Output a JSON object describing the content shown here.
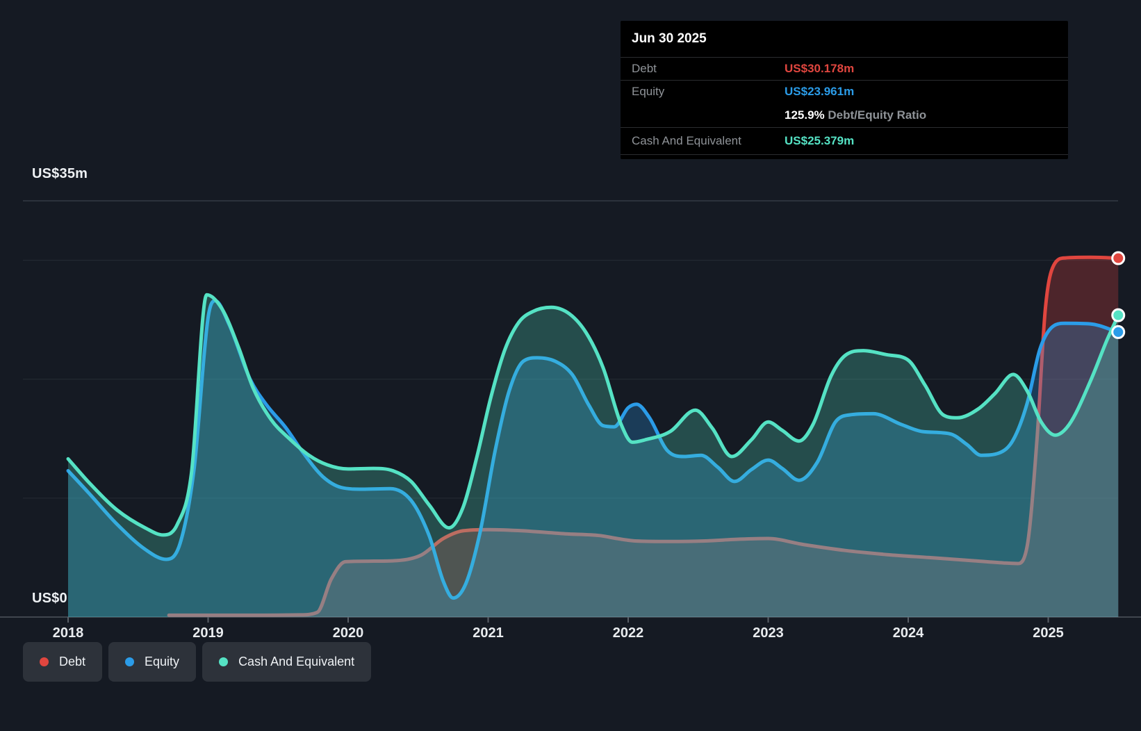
{
  "y_axis": {
    "top_label": "US$35m",
    "bottom_label": "US$0"
  },
  "series_colors": {
    "debt": "#e0463f",
    "equity": "#2b9ce8",
    "cash": "#55e2c4"
  },
  "tooltip": {
    "date": "Jun 30 2025",
    "rows": [
      {
        "key": "debt",
        "label": "Debt",
        "value": "US$30.178m"
      },
      {
        "key": "equity",
        "label": "Equity",
        "value": "US$23.961m"
      }
    ],
    "ratio": {
      "value": "125.9%",
      "label": "Debt/Equity Ratio"
    },
    "cash_row": {
      "key": "cash",
      "label": "Cash And Equivalent",
      "value": "US$25.379m"
    }
  },
  "legend": [
    {
      "key": "debt",
      "label": "Debt"
    },
    {
      "key": "equity",
      "label": "Equity"
    },
    {
      "key": "cash",
      "label": "Cash And Equivalent"
    }
  ],
  "chart_data": {
    "type": "area",
    "unit": "US$ millions",
    "x_ticks": [
      "2018",
      "2019",
      "2020",
      "2021",
      "2022",
      "2023",
      "2024",
      "2025"
    ],
    "x_range": [
      2018.0,
      2025.5
    ],
    "ylim": [
      0,
      35
    ],
    "gridlines_m": [
      35,
      30,
      20,
      10
    ],
    "grid_on": true,
    "legend_position": "bottom-left",
    "last_point": {
      "date": "Jun 30 2025",
      "debt": 30.178,
      "equity": 23.961,
      "cash": 25.379,
      "debt_equity_ratio_pct": 125.9
    },
    "series": [
      {
        "key": "debt",
        "name": "Debt",
        "fill_alpha": 0.28,
        "points": [
          [
            2018.72,
            0.15
          ],
          [
            2019.0,
            0.15
          ],
          [
            2019.35,
            0.15
          ],
          [
            2019.65,
            0.18
          ],
          [
            2019.78,
            0.4
          ],
          [
            2019.88,
            3.2
          ],
          [
            2019.98,
            4.65
          ],
          [
            2020.15,
            4.7
          ],
          [
            2020.35,
            4.75
          ],
          [
            2020.52,
            5.2
          ],
          [
            2020.68,
            6.6
          ],
          [
            2020.82,
            7.25
          ],
          [
            2021.0,
            7.35
          ],
          [
            2021.25,
            7.25
          ],
          [
            2021.55,
            7.0
          ],
          [
            2021.8,
            6.85
          ],
          [
            2021.92,
            6.6
          ],
          [
            2022.05,
            6.4
          ],
          [
            2022.3,
            6.35
          ],
          [
            2022.55,
            6.4
          ],
          [
            2022.8,
            6.55
          ],
          [
            2023.0,
            6.6
          ],
          [
            2023.25,
            6.1
          ],
          [
            2023.55,
            5.6
          ],
          [
            2023.85,
            5.25
          ],
          [
            2024.15,
            5.0
          ],
          [
            2024.45,
            4.75
          ],
          [
            2024.68,
            4.55
          ],
          [
            2024.78,
            4.5
          ],
          [
            2024.85,
            6.0
          ],
          [
            2024.92,
            15.0
          ],
          [
            2024.98,
            26.0
          ],
          [
            2025.04,
            29.6
          ],
          [
            2025.12,
            30.2
          ],
          [
            2025.3,
            30.25
          ],
          [
            2025.5,
            30.178
          ]
        ]
      },
      {
        "key": "equity",
        "name": "Equity",
        "fill_alpha": 0.27,
        "points": [
          [
            2018.0,
            12.3
          ],
          [
            2018.15,
            10.4
          ],
          [
            2018.35,
            7.8
          ],
          [
            2018.55,
            5.7
          ],
          [
            2018.7,
            4.85
          ],
          [
            2018.8,
            6.2
          ],
          [
            2018.9,
            12.5
          ],
          [
            2019.0,
            25.2
          ],
          [
            2019.05,
            26.6
          ],
          [
            2019.15,
            24.6
          ],
          [
            2019.3,
            20.0
          ],
          [
            2019.42,
            17.8
          ],
          [
            2019.55,
            16.0
          ],
          [
            2019.68,
            13.8
          ],
          [
            2019.82,
            11.8
          ],
          [
            2019.95,
            10.9
          ],
          [
            2020.1,
            10.75
          ],
          [
            2020.3,
            10.8
          ],
          [
            2020.45,
            9.8
          ],
          [
            2020.58,
            6.8
          ],
          [
            2020.68,
            3.0
          ],
          [
            2020.75,
            1.6
          ],
          [
            2020.84,
            2.8
          ],
          [
            2020.94,
            7.0
          ],
          [
            2021.05,
            14.0
          ],
          [
            2021.15,
            19.0
          ],
          [
            2021.25,
            21.5
          ],
          [
            2021.35,
            21.8
          ],
          [
            2021.48,
            21.5
          ],
          [
            2021.6,
            20.4
          ],
          [
            2021.72,
            17.8
          ],
          [
            2021.82,
            16.1
          ],
          [
            2021.9,
            16.0
          ],
          [
            2022.0,
            17.6
          ],
          [
            2022.06,
            17.9
          ],
          [
            2022.15,
            16.8
          ],
          [
            2022.28,
            14.0
          ],
          [
            2022.4,
            13.5
          ],
          [
            2022.52,
            13.6
          ],
          [
            2022.64,
            12.6
          ],
          [
            2022.76,
            11.4
          ],
          [
            2022.88,
            12.4
          ],
          [
            2023.0,
            13.2
          ],
          [
            2023.1,
            12.5
          ],
          [
            2023.22,
            11.5
          ],
          [
            2023.35,
            13.0
          ],
          [
            2023.48,
            16.4
          ],
          [
            2023.58,
            17.0
          ],
          [
            2023.75,
            17.1
          ],
          [
            2023.95,
            16.2
          ],
          [
            2024.1,
            15.6
          ],
          [
            2024.3,
            15.4
          ],
          [
            2024.42,
            14.5
          ],
          [
            2024.52,
            13.6
          ],
          [
            2024.65,
            13.8
          ],
          [
            2024.75,
            14.9
          ],
          [
            2024.85,
            18.0
          ],
          [
            2024.94,
            22.5
          ],
          [
            2025.02,
            24.3
          ],
          [
            2025.12,
            24.7
          ],
          [
            2025.3,
            24.65
          ],
          [
            2025.5,
            23.961
          ]
        ]
      },
      {
        "key": "cash",
        "name": "Cash And Equivalent",
        "fill_alpha": 0.26,
        "points": [
          [
            2018.0,
            13.3
          ],
          [
            2018.15,
            11.3
          ],
          [
            2018.35,
            9.0
          ],
          [
            2018.55,
            7.5
          ],
          [
            2018.68,
            6.9
          ],
          [
            2018.78,
            7.8
          ],
          [
            2018.88,
            12.0
          ],
          [
            2018.99,
            27.1
          ],
          [
            2019.1,
            25.9
          ],
          [
            2019.22,
            22.6
          ],
          [
            2019.32,
            19.3
          ],
          [
            2019.45,
            16.6
          ],
          [
            2019.58,
            15.0
          ],
          [
            2019.72,
            13.6
          ],
          [
            2019.85,
            12.8
          ],
          [
            2020.0,
            12.45
          ],
          [
            2020.18,
            12.5
          ],
          [
            2020.32,
            12.3
          ],
          [
            2020.45,
            11.4
          ],
          [
            2020.58,
            9.4
          ],
          [
            2020.72,
            7.5
          ],
          [
            2020.82,
            9.2
          ],
          [
            2020.92,
            13.5
          ],
          [
            2021.02,
            18.5
          ],
          [
            2021.12,
            22.5
          ],
          [
            2021.22,
            24.8
          ],
          [
            2021.32,
            25.7
          ],
          [
            2021.45,
            26.05
          ],
          [
            2021.58,
            25.5
          ],
          [
            2021.7,
            23.9
          ],
          [
            2021.82,
            21.0
          ],
          [
            2021.95,
            16.2
          ],
          [
            2022.03,
            14.7
          ],
          [
            2022.12,
            14.9
          ],
          [
            2022.3,
            15.6
          ],
          [
            2022.48,
            17.4
          ],
          [
            2022.6,
            15.9
          ],
          [
            2022.74,
            13.5
          ],
          [
            2022.88,
            14.9
          ],
          [
            2023.0,
            16.4
          ],
          [
            2023.1,
            15.7
          ],
          [
            2023.22,
            14.8
          ],
          [
            2023.32,
            16.2
          ],
          [
            2023.45,
            20.3
          ],
          [
            2023.55,
            22.0
          ],
          [
            2023.68,
            22.4
          ],
          [
            2023.85,
            22.05
          ],
          [
            2024.0,
            21.6
          ],
          [
            2024.12,
            19.5
          ],
          [
            2024.25,
            17.0
          ],
          [
            2024.35,
            16.75
          ],
          [
            2024.5,
            17.5
          ],
          [
            2024.62,
            18.8
          ],
          [
            2024.75,
            20.4
          ],
          [
            2024.85,
            19.0
          ],
          [
            2024.95,
            16.4
          ],
          [
            2025.05,
            15.3
          ],
          [
            2025.15,
            16.2
          ],
          [
            2025.3,
            19.8
          ],
          [
            2025.42,
            23.3
          ],
          [
            2025.5,
            25.379
          ]
        ]
      }
    ]
  }
}
